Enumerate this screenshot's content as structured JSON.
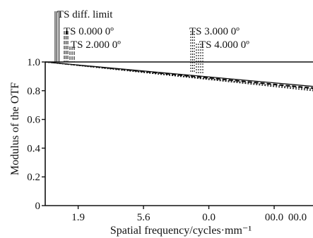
{
  "chart_data": {
    "type": "line",
    "title": "",
    "xlabel": "Spatial frequency/cycles·mm⁻¹",
    "ylabel": "Modulus of the OTF",
    "x_tick_labels": [
      "1.9",
      "5.6",
      "0.0",
      "00.0",
      "00.0"
    ],
    "y_tick_labels": [
      "0",
      "0.2",
      "0.4",
      "0.6",
      "0.8",
      "1.0"
    ],
    "xlim": [
      0,
      100
    ],
    "ylim": [
      0,
      1
    ],
    "x_ticks": [
      12.3,
      36.7,
      61.1,
      85.5,
      109.9
    ],
    "grid": false,
    "legend_position": "top",
    "series": [
      {
        "name": "TS diff. limit",
        "x": [
          0,
          100
        ],
        "y": [
          1.0,
          0.83
        ],
        "style": "solid"
      },
      {
        "name": "TS 0.000 0º",
        "x": [
          0,
          100
        ],
        "y": [
          1.0,
          0.82
        ],
        "style": "dashed"
      },
      {
        "name": "TS 2.000 0º",
        "x": [
          0,
          100
        ],
        "y": [
          1.0,
          0.815
        ],
        "style": "dashed"
      },
      {
        "name": "TS 3.000 0º",
        "x": [
          0,
          100
        ],
        "y": [
          1.0,
          0.81
        ],
        "style": "dotted"
      },
      {
        "name": "TS 4.000 0º",
        "x": [
          0,
          100
        ],
        "y": [
          1.0,
          0.8
        ],
        "style": "dotted"
      }
    ]
  }
}
